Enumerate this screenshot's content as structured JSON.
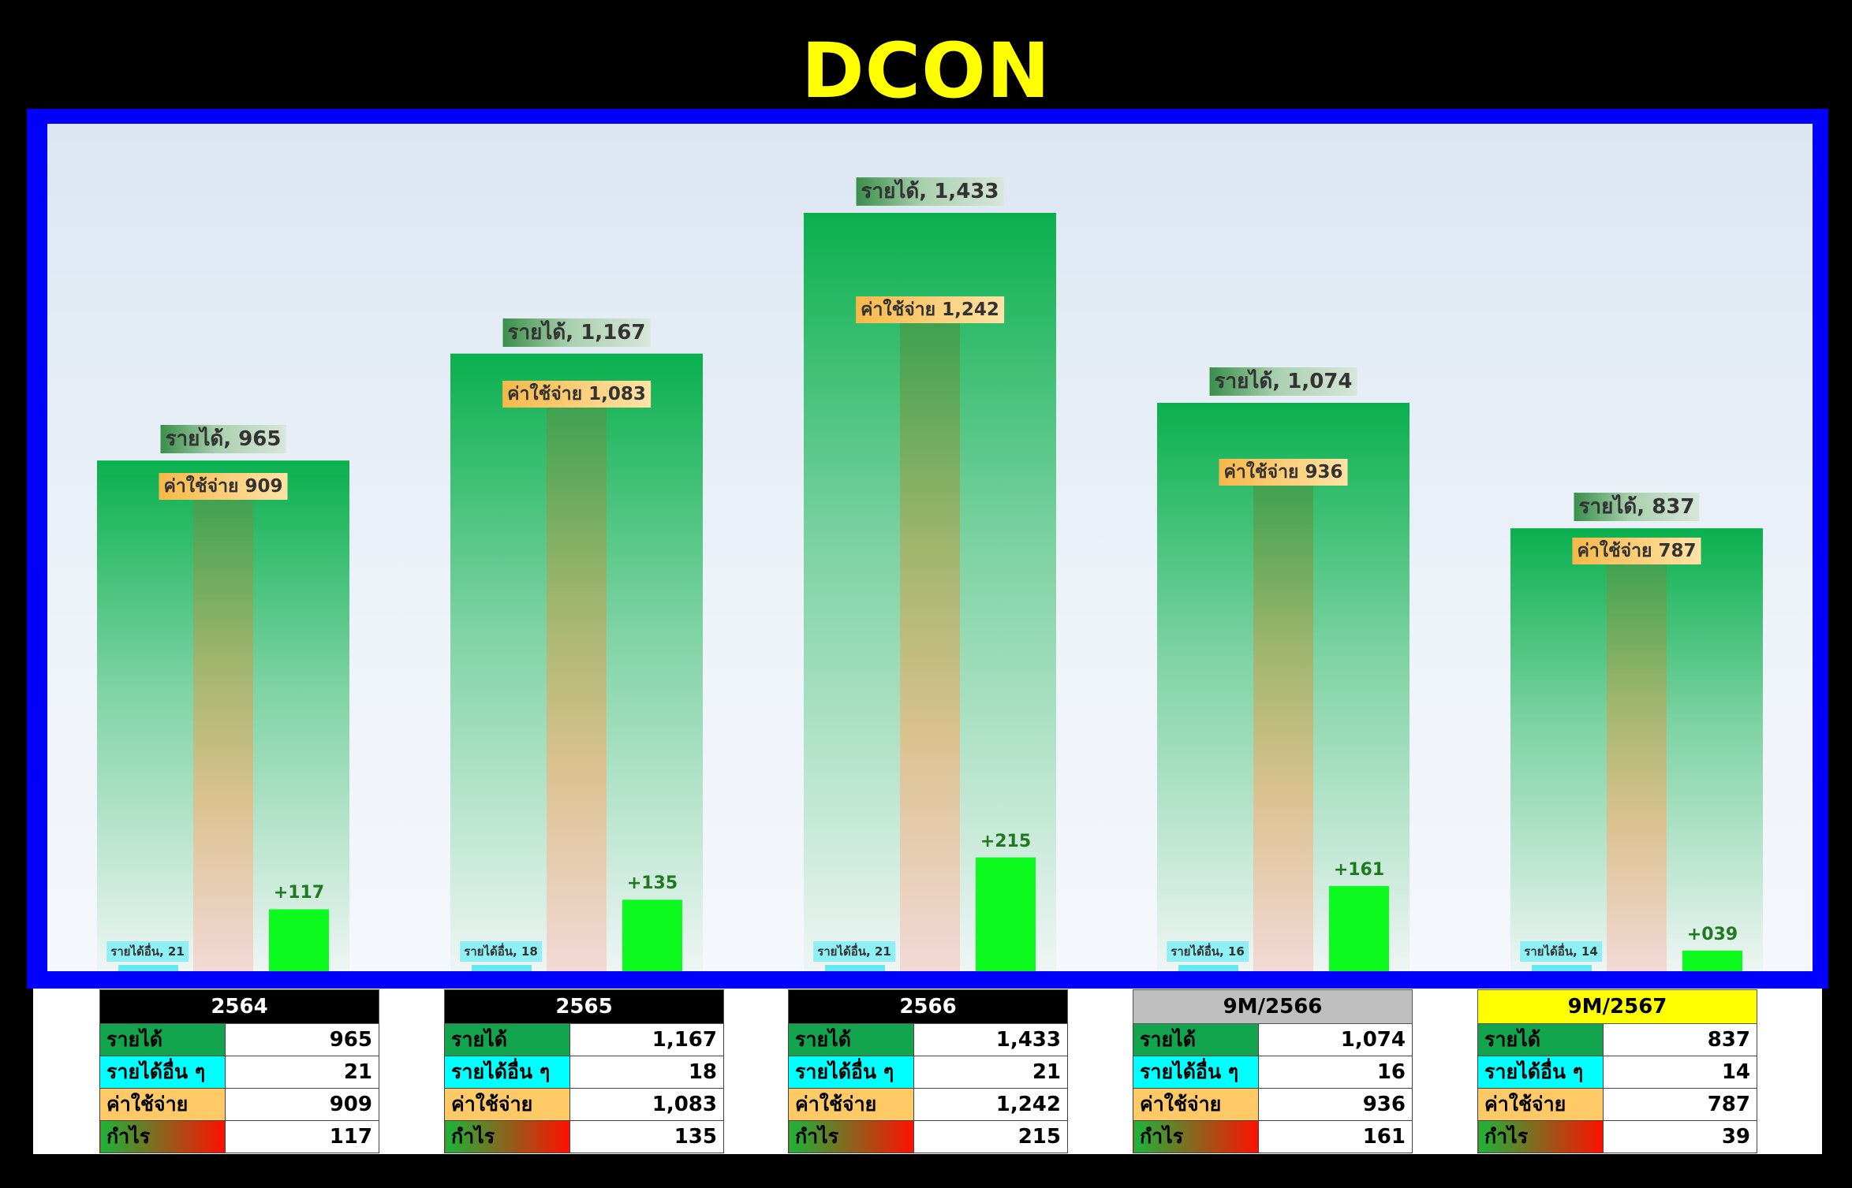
{
  "title": "DCON",
  "chart_data": {
    "type": "bar",
    "categories": [
      "2564",
      "2565",
      "2566",
      "9M/2566",
      "9M/2567"
    ],
    "series": [
      {
        "name": "รายได้",
        "values": [
          965,
          1167,
          1433,
          1074,
          837
        ]
      },
      {
        "name": "รายได้อื่น",
        "values": [
          21,
          18,
          21,
          16,
          14
        ]
      },
      {
        "name": "ค่าใช้จ่าย",
        "values": [
          909,
          1083,
          1242,
          936,
          787
        ]
      },
      {
        "name": "กำไร",
        "values": [
          117,
          135,
          215,
          161,
          39
        ]
      }
    ],
    "labels": {
      "revenue": [
        "รายได้, 965",
        "รายได้, 1,167",
        "รายได้, 1,433",
        "รายได้, 1,074",
        "รายได้, 837"
      ],
      "other_income": [
        "รายได้อื่น, 21",
        "รายได้อื่น, 18",
        "รายได้อื่น, 21",
        "รายได้อื่น, 16",
        "รายได้อื่น, 14"
      ],
      "expense": [
        "ค่าใช้จ่าย 909",
        "ค่าใช้จ่าย 1,083",
        "ค่าใช้จ่าย 1,242",
        "ค่าใช้จ่าย 936",
        "ค่าใช้จ่าย 787"
      ],
      "profit": [
        "+117",
        "+135",
        "+215",
        "+161",
        "+039"
      ]
    },
    "ylim": [
      0,
      1433
    ],
    "grid": false,
    "colors": {
      "revenue": "#0ab04e",
      "other_income": "#66e8f0",
      "expense": "#3aa14f",
      "profit": "#0dfa1f"
    }
  },
  "tables": [
    {
      "header": "2564",
      "rows": [
        {
          "label": "รายได้",
          "value": "965"
        },
        {
          "label": "รายได้อื่น ๆ",
          "value": "21"
        },
        {
          "label": "ค่าใช้จ่าย",
          "value": "909"
        },
        {
          "label": "กำไร",
          "value": "117"
        }
      ]
    },
    {
      "header": "2565",
      "rows": [
        {
          "label": "รายได้",
          "value": "1,167"
        },
        {
          "label": "รายได้อื่น ๆ",
          "value": "18"
        },
        {
          "label": "ค่าใช้จ่าย",
          "value": "1,083"
        },
        {
          "label": "กำไร",
          "value": "135"
        }
      ]
    },
    {
      "header": "2566",
      "rows": [
        {
          "label": "รายได้",
          "value": "1,433"
        },
        {
          "label": "รายได้อื่น ๆ",
          "value": "21"
        },
        {
          "label": "ค่าใช้จ่าย",
          "value": "1,242"
        },
        {
          "label": "กำไร",
          "value": "215"
        }
      ]
    },
    {
      "header": "9M/2566",
      "rows": [
        {
          "label": "รายได้",
          "value": "1,074"
        },
        {
          "label": "รายได้อื่น ๆ",
          "value": "16"
        },
        {
          "label": "ค่าใช้จ่าย",
          "value": "936"
        },
        {
          "label": "กำไร",
          "value": "161"
        }
      ]
    },
    {
      "header": "9M/2567",
      "rows": [
        {
          "label": "รายได้",
          "value": "837"
        },
        {
          "label": "รายได้อื่น ๆ",
          "value": "14"
        },
        {
          "label": "ค่าใช้จ่าย",
          "value": "787"
        },
        {
          "label": "กำไร",
          "value": "39"
        }
      ]
    }
  ]
}
